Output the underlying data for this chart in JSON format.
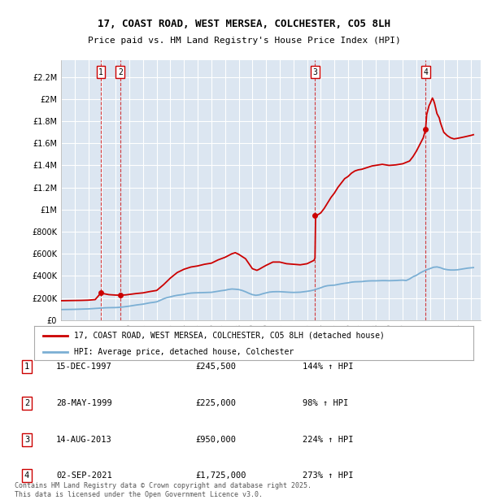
{
  "title_line1": "17, COAST ROAD, WEST MERSEA, COLCHESTER, CO5 8LH",
  "title_line2": "Price paid vs. HM Land Registry's House Price Index (HPI)",
  "ylabel_ticks": [
    "£0",
    "£200K",
    "£400K",
    "£600K",
    "£800K",
    "£1M",
    "£1.2M",
    "£1.4M",
    "£1.6M",
    "£1.8M",
    "£2M",
    "£2.2M"
  ],
  "ylabel_values": [
    0,
    200000,
    400000,
    600000,
    800000,
    1000000,
    1200000,
    1400000,
    1600000,
    1800000,
    2000000,
    2200000
  ],
  "ylim": [
    0,
    2350000
  ],
  "background_color": "#ffffff",
  "plot_bg_color": "#dce6f1",
  "grid_color": "#ffffff",
  "red_line_color": "#cc0000",
  "blue_line_color": "#7bafd4",
  "sale_points": [
    {
      "date": "1997-12-15",
      "price": 245500,
      "label": "1"
    },
    {
      "date": "1999-05-28",
      "price": 225000,
      "label": "2"
    },
    {
      "date": "2013-08-14",
      "price": 950000,
      "label": "3"
    },
    {
      "date": "2021-09-02",
      "price": 1725000,
      "label": "4"
    }
  ],
  "table_entries": [
    {
      "num": "1",
      "date": "15-DEC-1997",
      "price": "£245,500",
      "hpi": "144% ↑ HPI"
    },
    {
      "num": "2",
      "date": "28-MAY-1999",
      "price": "£225,000",
      "hpi": "98% ↑ HPI"
    },
    {
      "num": "3",
      "date": "14-AUG-2013",
      "price": "£950,000",
      "hpi": "224% ↑ HPI"
    },
    {
      "num": "4",
      "date": "02-SEP-2021",
      "price": "£1,725,000",
      "hpi": "273% ↑ HPI"
    }
  ],
  "legend_label_red": "17, COAST ROAD, WEST MERSEA, COLCHESTER, CO5 8LH (detached house)",
  "legend_label_blue": "HPI: Average price, detached house, Colchester",
  "footer": "Contains HM Land Registry data © Crown copyright and database right 2025.\nThis data is licensed under the Open Government Licence v3.0.",
  "hpi_data": [
    [
      1995.0,
      95000
    ],
    [
      1995.25,
      95500
    ],
    [
      1995.5,
      96000
    ],
    [
      1995.75,
      96500
    ],
    [
      1996.0,
      97000
    ],
    [
      1996.25,
      98000
    ],
    [
      1996.5,
      99000
    ],
    [
      1996.75,
      100000
    ],
    [
      1997.0,
      101000
    ],
    [
      1997.25,
      103000
    ],
    [
      1997.5,
      105000
    ],
    [
      1997.75,
      107000
    ],
    [
      1998.0,
      109000
    ],
    [
      1998.25,
      111000
    ],
    [
      1998.5,
      112000
    ],
    [
      1998.75,
      112500
    ],
    [
      1999.0,
      113000
    ],
    [
      1999.25,
      115000
    ],
    [
      1999.5,
      118000
    ],
    [
      1999.75,
      122000
    ],
    [
      2000.0,
      126000
    ],
    [
      2000.25,
      131000
    ],
    [
      2000.5,
      136000
    ],
    [
      2000.75,
      140000
    ],
    [
      2001.0,
      144000
    ],
    [
      2001.25,
      150000
    ],
    [
      2001.5,
      156000
    ],
    [
      2001.75,
      160000
    ],
    [
      2002.0,
      165000
    ],
    [
      2002.25,
      178000
    ],
    [
      2002.5,
      192000
    ],
    [
      2002.75,
      203000
    ],
    [
      2003.0,
      210000
    ],
    [
      2003.25,
      218000
    ],
    [
      2003.5,
      224000
    ],
    [
      2003.75,
      228000
    ],
    [
      2004.0,
      232000
    ],
    [
      2004.25,
      240000
    ],
    [
      2004.5,
      244000
    ],
    [
      2004.75,
      246000
    ],
    [
      2005.0,
      247000
    ],
    [
      2005.25,
      248000
    ],
    [
      2005.5,
      249000
    ],
    [
      2005.75,
      250000
    ],
    [
      2006.0,
      251000
    ],
    [
      2006.25,
      256000
    ],
    [
      2006.5,
      261000
    ],
    [
      2006.75,
      266000
    ],
    [
      2007.0,
      270000
    ],
    [
      2007.25,
      277000
    ],
    [
      2007.5,
      281000
    ],
    [
      2007.75,
      279000
    ],
    [
      2008.0,
      276000
    ],
    [
      2008.25,
      268000
    ],
    [
      2008.5,
      256000
    ],
    [
      2008.75,
      242000
    ],
    [
      2009.0,
      230000
    ],
    [
      2009.25,
      224000
    ],
    [
      2009.5,
      228000
    ],
    [
      2009.75,
      238000
    ],
    [
      2010.0,
      246000
    ],
    [
      2010.25,
      253000
    ],
    [
      2010.5,
      256000
    ],
    [
      2010.75,
      257000
    ],
    [
      2011.0,
      257000
    ],
    [
      2011.25,
      255000
    ],
    [
      2011.5,
      253000
    ],
    [
      2011.75,
      251000
    ],
    [
      2012.0,
      250000
    ],
    [
      2012.25,
      251000
    ],
    [
      2012.5,
      252000
    ],
    [
      2012.75,
      256000
    ],
    [
      2013.0,
      260000
    ],
    [
      2013.25,
      265000
    ],
    [
      2013.5,
      272000
    ],
    [
      2013.75,
      282000
    ],
    [
      2014.0,
      292000
    ],
    [
      2014.25,
      304000
    ],
    [
      2014.5,
      311000
    ],
    [
      2014.75,
      314000
    ],
    [
      2015.0,
      316000
    ],
    [
      2015.25,
      322000
    ],
    [
      2015.5,
      328000
    ],
    [
      2015.75,
      333000
    ],
    [
      2016.0,
      337000
    ],
    [
      2016.25,
      343000
    ],
    [
      2016.5,
      346000
    ],
    [
      2016.75,
      347000
    ],
    [
      2017.0,
      348000
    ],
    [
      2017.25,
      352000
    ],
    [
      2017.5,
      354000
    ],
    [
      2017.75,
      355000
    ],
    [
      2018.0,
      355000
    ],
    [
      2018.25,
      356000
    ],
    [
      2018.5,
      357000
    ],
    [
      2018.75,
      357000
    ],
    [
      2019.0,
      356000
    ],
    [
      2019.25,
      357000
    ],
    [
      2019.5,
      358000
    ],
    [
      2019.75,
      360000
    ],
    [
      2020.0,
      361000
    ],
    [
      2020.25,
      358000
    ],
    [
      2020.5,
      372000
    ],
    [
      2020.75,
      392000
    ],
    [
      2021.0,
      405000
    ],
    [
      2021.25,
      425000
    ],
    [
      2021.5,
      441000
    ],
    [
      2021.75,
      455000
    ],
    [
      2022.0,
      466000
    ],
    [
      2022.25,
      478000
    ],
    [
      2022.5,
      481000
    ],
    [
      2022.75,
      474000
    ],
    [
      2023.0,
      462000
    ],
    [
      2023.25,
      456000
    ],
    [
      2023.5,
      453000
    ],
    [
      2023.75,
      453000
    ],
    [
      2024.0,
      455000
    ],
    [
      2024.25,
      460000
    ],
    [
      2024.5,
      465000
    ],
    [
      2024.75,
      470000
    ],
    [
      2025.0,
      473000
    ],
    [
      2025.17,
      475000
    ]
  ],
  "red_data": [
    [
      1995.0,
      175000
    ],
    [
      1995.5,
      176000
    ],
    [
      1996.0,
      177000
    ],
    [
      1996.5,
      178000
    ],
    [
      1997.0,
      180000
    ],
    [
      1997.5,
      185000
    ],
    [
      1997.92,
      245500
    ],
    [
      1997.96,
      243000
    ],
    [
      1998.5,
      230000
    ],
    [
      1999.0,
      226000
    ],
    [
      1999.33,
      225000
    ],
    [
      1999.5,
      226000
    ],
    [
      1999.75,
      228000
    ],
    [
      2000.0,
      232000
    ],
    [
      2000.5,
      240000
    ],
    [
      2001.0,
      246000
    ],
    [
      2001.5,
      258000
    ],
    [
      2002.0,
      268000
    ],
    [
      2002.5,
      320000
    ],
    [
      2003.0,
      380000
    ],
    [
      2003.5,
      430000
    ],
    [
      2004.0,
      460000
    ],
    [
      2004.5,
      480000
    ],
    [
      2005.0,
      490000
    ],
    [
      2005.5,
      505000
    ],
    [
      2006.0,
      515000
    ],
    [
      2006.5,
      545000
    ],
    [
      2007.0,
      568000
    ],
    [
      2007.5,
      600000
    ],
    [
      2007.75,
      610000
    ],
    [
      2007.83,
      605000
    ],
    [
      2008.0,
      595000
    ],
    [
      2008.5,
      555000
    ],
    [
      2009.0,
      465000
    ],
    [
      2009.33,
      450000
    ],
    [
      2009.5,
      460000
    ],
    [
      2009.75,
      478000
    ],
    [
      2010.0,
      495000
    ],
    [
      2010.5,
      525000
    ],
    [
      2011.0,
      525000
    ],
    [
      2011.5,
      510000
    ],
    [
      2012.0,
      505000
    ],
    [
      2012.5,
      500000
    ],
    [
      2013.0,
      510000
    ],
    [
      2013.5,
      540000
    ],
    [
      2013.58,
      560000
    ],
    [
      2013.625,
      950000
    ],
    [
      2013.67,
      940000
    ],
    [
      2013.75,
      950000
    ],
    [
      2014.0,
      970000
    ],
    [
      2014.25,
      1010000
    ],
    [
      2014.5,
      1060000
    ],
    [
      2014.75,
      1110000
    ],
    [
      2015.0,
      1150000
    ],
    [
      2015.25,
      1200000
    ],
    [
      2015.5,
      1240000
    ],
    [
      2015.75,
      1280000
    ],
    [
      2016.0,
      1300000
    ],
    [
      2016.25,
      1330000
    ],
    [
      2016.5,
      1350000
    ],
    [
      2016.75,
      1360000
    ],
    [
      2017.0,
      1365000
    ],
    [
      2017.25,
      1375000
    ],
    [
      2017.5,
      1385000
    ],
    [
      2017.75,
      1395000
    ],
    [
      2018.0,
      1400000
    ],
    [
      2018.5,
      1410000
    ],
    [
      2019.0,
      1400000
    ],
    [
      2019.5,
      1405000
    ],
    [
      2020.0,
      1415000
    ],
    [
      2020.5,
      1440000
    ],
    [
      2020.75,
      1480000
    ],
    [
      2021.0,
      1530000
    ],
    [
      2021.5,
      1650000
    ],
    [
      2021.67,
      1725000
    ],
    [
      2021.75,
      1860000
    ],
    [
      2021.92,
      1940000
    ],
    [
      2022.0,
      1960000
    ],
    [
      2022.17,
      2010000
    ],
    [
      2022.25,
      1990000
    ],
    [
      2022.33,
      1960000
    ],
    [
      2022.5,
      1870000
    ],
    [
      2022.67,
      1830000
    ],
    [
      2022.75,
      1790000
    ],
    [
      2022.83,
      1760000
    ],
    [
      2023.0,
      1700000
    ],
    [
      2023.25,
      1670000
    ],
    [
      2023.5,
      1650000
    ],
    [
      2023.75,
      1640000
    ],
    [
      2024.0,
      1645000
    ],
    [
      2024.5,
      1658000
    ],
    [
      2024.75,
      1665000
    ],
    [
      2025.0,
      1672000
    ],
    [
      2025.17,
      1678000
    ]
  ]
}
